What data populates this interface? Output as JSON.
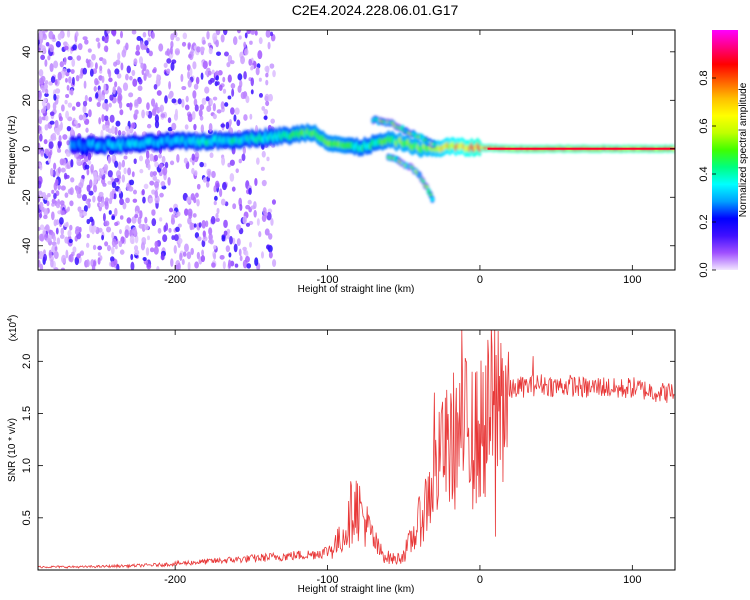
{
  "title": "C2E4.2024.228.06.01.G17",
  "chart_data": [
    {
      "type": "heatmap",
      "xlabel": "Height of straight line (km)",
      "ylabel": "Frequency (Hz)",
      "xlim": [
        -290,
        128
      ],
      "ylim": [
        -50,
        49
      ],
      "xticks": [
        -200,
        -100,
        0,
        100
      ],
      "xtick_labels": [
        "-200",
        "-100",
        "0",
        "100"
      ],
      "yticks": [
        -40,
        -20,
        0,
        20,
        40
      ],
      "ytick_labels": [
        "-40",
        "-20",
        "0",
        "20",
        "40"
      ],
      "colorbar": {
        "label": "Normalized spectral amplitude",
        "range": [
          0,
          1
        ],
        "ticks": [
          0.0,
          0.2,
          0.4,
          0.6,
          0.8
        ],
        "tick_labels": [
          "0.0",
          "0.2",
          "0.4",
          "0.6",
          "0.8"
        ],
        "colors": [
          "#f2e6ff",
          "#a050ff",
          "#4010ff",
          "#0000ff",
          "#00a0ff",
          "#00ffff",
          "#00ff80",
          "#40ff00",
          "#c0ff00",
          "#ffff00",
          "#ffc000",
          "#ff6000",
          "#ff0000",
          "#ff0080",
          "#ff00ff"
        ]
      },
      "ridge": {
        "x": [
          -265,
          -245,
          -225,
          -205,
          -185,
          -165,
          -145,
          -125,
          -110,
          -100,
          -90,
          -80,
          -70,
          -60,
          -50,
          -40,
          -30,
          -20,
          -10,
          0,
          20,
          50,
          80,
          110,
          128
        ],
        "y": [
          1.5,
          1.5,
          2.0,
          3.0,
          3.0,
          3.5,
          4.5,
          5.5,
          7.0,
          3.0,
          1.5,
          0.5,
          2.0,
          3.5,
          2.5,
          0.5,
          0.0,
          1.0,
          0.5,
          0.5,
          0.0,
          0.0,
          0.0,
          0.0,
          0.0
        ],
        "amplitude": [
          0.3,
          0.35,
          0.35,
          0.35,
          0.4,
          0.4,
          0.4,
          0.45,
          0.5,
          0.5,
          0.5,
          0.45,
          0.45,
          0.5,
          0.55,
          0.55,
          0.6,
          0.7,
          0.75,
          0.8,
          0.85,
          0.85,
          0.85,
          0.85,
          0.85
        ]
      },
      "noise_region": {
        "x_range": [
          -290,
          -135
        ],
        "y_range": [
          -50,
          49
        ],
        "amplitude": 0.15
      },
      "upper_branch": {
        "x": [
          -70,
          -60,
          -50,
          -40,
          -30
        ],
        "y": [
          12,
          11,
          8,
          5,
          2
        ]
      },
      "lower_branch": {
        "x": [
          -60,
          -50,
          -40,
          -35,
          -30
        ],
        "y": [
          -3,
          -6,
          -10,
          -16,
          -22
        ]
      }
    },
    {
      "type": "line",
      "xlabel": "Height of straight line (km)",
      "ylabel": "SNR (10 * v/v)",
      "y_multiplier": "(x10",
      "y_multiplier_exp": "4",
      "y_multiplier_close": ")",
      "xlim": [
        -290,
        128
      ],
      "ylim": [
        0,
        23000
      ],
      "xticks": [
        -200,
        -100,
        0,
        100
      ],
      "xtick_labels": [
        "-200",
        "-100",
        "0",
        "100"
      ],
      "yticks": [
        5000,
        10000,
        15000,
        20000
      ],
      "ytick_labels": [
        "0.5",
        "1.0",
        "1.5",
        "2.0"
      ],
      "color": "#e83838",
      "series": [
        {
          "x": [
            -290,
            -260,
            -230,
            -210,
            -190,
            -170,
            -150,
            -130,
            -110,
            -100,
            -92,
            -86,
            -82,
            -78,
            -72,
            -66,
            -60,
            -55,
            -50,
            -45,
            -40,
            -35,
            -30,
            -25,
            -20,
            -15,
            -10,
            -5,
            0,
            5,
            10,
            15,
            20,
            25,
            30,
            40,
            50,
            60,
            70,
            80,
            90,
            100,
            110,
            120,
            128
          ],
          "y": [
            300,
            300,
            400,
            500,
            700,
            900,
            1100,
            1300,
            1500,
            1800,
            2800,
            4500,
            6500,
            5500,
            3500,
            1800,
            1200,
            1000,
            1500,
            2800,
            4500,
            6500,
            9000,
            10500,
            12000,
            12800,
            13500,
            12500,
            13000,
            14500,
            16000,
            16800,
            17200,
            17500,
            17600,
            17800,
            17600,
            17700,
            17400,
            17600,
            17300,
            17500,
            17200,
            17000,
            17000
          ]
        }
      ],
      "spikes": [
        {
          "x": -85,
          "y": 8500
        },
        {
          "x": -82,
          "y": 7500
        },
        {
          "x": -30,
          "y": 17000
        },
        {
          "x": -25,
          "y": 15500
        },
        {
          "x": -12,
          "y": 23000
        },
        {
          "x": -5,
          "y": 19000
        },
        {
          "x": 10,
          "y": 3200
        },
        {
          "x": 35,
          "y": 20500
        }
      ]
    }
  ]
}
